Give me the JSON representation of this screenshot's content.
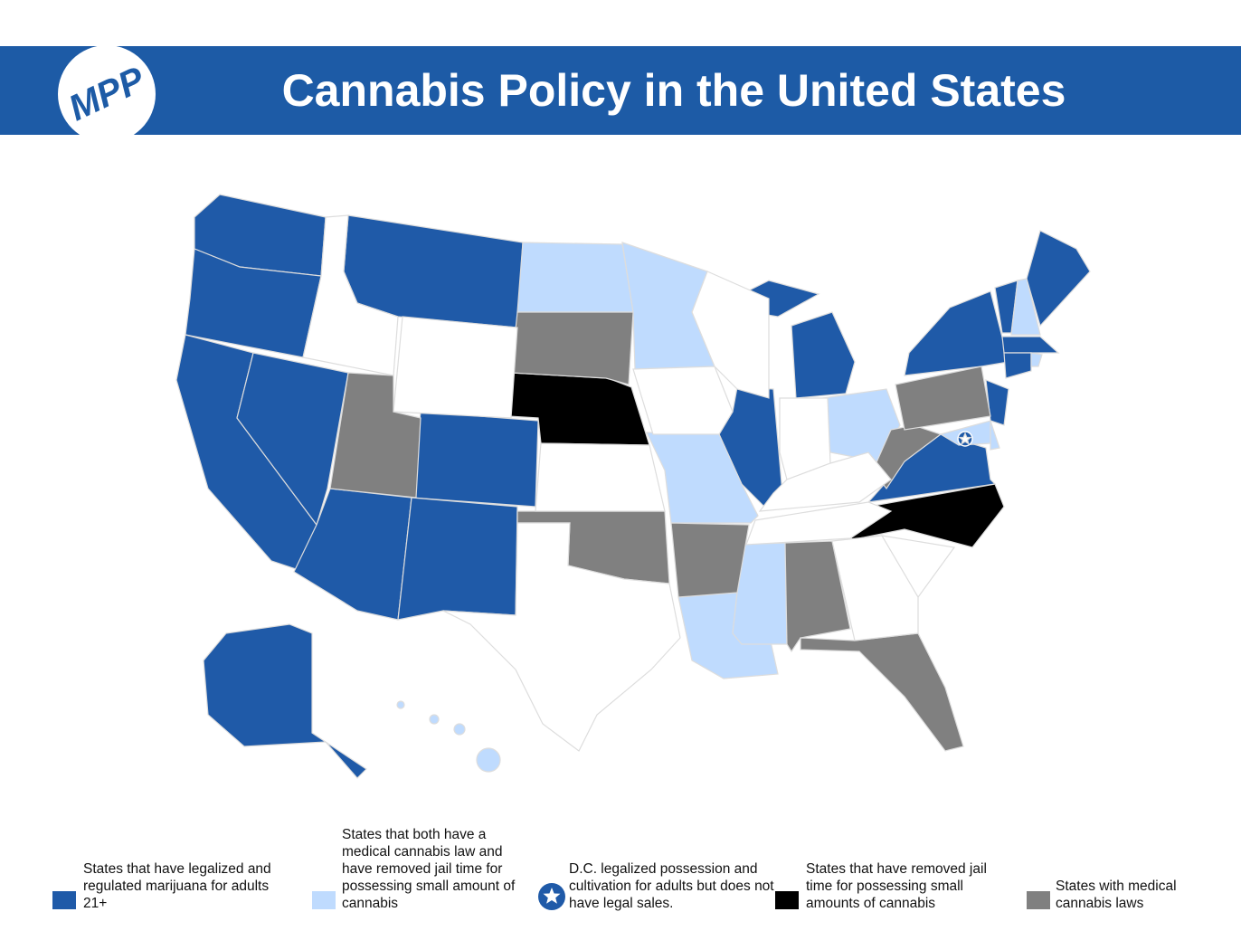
{
  "header": {
    "logo": "MPP",
    "title": "Cannabis Policy in the United States"
  },
  "legend": [
    {
      "label": "States that have legalized and regulated marijuana for adults 21+"
    },
    {
      "label": "States that both have a medical cannabis law and have removed jail time for possessing small amount of cannabis"
    },
    {
      "label": "D.C. legalized possession and cultivation for adults but does not have legal sales."
    },
    {
      "label": "States that have removed jail time for possessing small amounts of cannabis"
    },
    {
      "label": "States with medical cannabis laws"
    }
  ]
}
